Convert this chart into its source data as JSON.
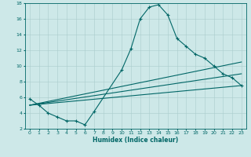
{
  "xlabel": "Humidex (Indice chaleur)",
  "bg_color": "#cde8e8",
  "grid_color": "#aacccc",
  "line_color": "#006666",
  "xlim": [
    -0.5,
    23.5
  ],
  "ylim": [
    2,
    18
  ],
  "xticks": [
    0,
    1,
    2,
    3,
    4,
    5,
    6,
    7,
    8,
    9,
    10,
    11,
    12,
    13,
    14,
    15,
    16,
    17,
    18,
    19,
    20,
    21,
    22,
    23
  ],
  "yticks": [
    2,
    4,
    6,
    8,
    10,
    12,
    14,
    16,
    18
  ],
  "series_main": {
    "x": [
      0,
      1,
      2,
      3,
      4,
      5,
      6,
      7,
      10,
      11,
      12,
      13,
      14,
      15,
      16,
      17,
      18,
      19,
      20,
      21,
      22,
      23
    ],
    "y": [
      5.8,
      5.0,
      4.0,
      3.5,
      3.0,
      3.0,
      2.5,
      4.2,
      9.5,
      12.2,
      16.0,
      17.5,
      17.8,
      16.5,
      13.5,
      12.5,
      11.5,
      11.0,
      10.0,
      9.0,
      8.5,
      7.5
    ]
  },
  "series_straight": [
    {
      "x": [
        0,
        23
      ],
      "y": [
        5.0,
        7.5
      ]
    },
    {
      "x": [
        0,
        23
      ],
      "y": [
        5.0,
        9.0
      ]
    },
    {
      "x": [
        0,
        23
      ],
      "y": [
        5.0,
        10.5
      ]
    }
  ]
}
